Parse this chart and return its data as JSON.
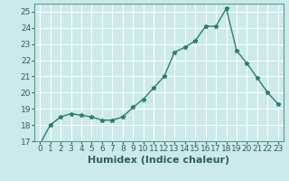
{
  "x": [
    0,
    1,
    2,
    3,
    4,
    5,
    6,
    7,
    8,
    9,
    10,
    11,
    12,
    13,
    14,
    15,
    16,
    17,
    18,
    19,
    20,
    21,
    22,
    23
  ],
  "y": [
    16.8,
    18.0,
    18.5,
    18.7,
    18.6,
    18.5,
    18.3,
    18.3,
    18.5,
    19.1,
    19.6,
    20.3,
    21.0,
    22.5,
    22.8,
    23.2,
    24.1,
    24.1,
    25.2,
    22.6,
    21.8,
    20.9,
    20.0,
    19.3
  ],
  "xlabel": "Humidex (Indice chaleur)",
  "ylim": [
    17,
    25.5
  ],
  "xlim": [
    -0.5,
    23.5
  ],
  "yticks": [
    17,
    18,
    19,
    20,
    21,
    22,
    23,
    24,
    25
  ],
  "xticks": [
    0,
    1,
    2,
    3,
    4,
    5,
    6,
    7,
    8,
    9,
    10,
    11,
    12,
    13,
    14,
    15,
    16,
    17,
    18,
    19,
    20,
    21,
    22,
    23
  ],
  "line_color": "#2e7d6e",
  "marker": "*",
  "bg_color": "#cceaea",
  "grid_color": "#ffffff",
  "tick_label_fontsize": 6.5,
  "xlabel_fontsize": 8,
  "spine_color": "#5a9a9a"
}
